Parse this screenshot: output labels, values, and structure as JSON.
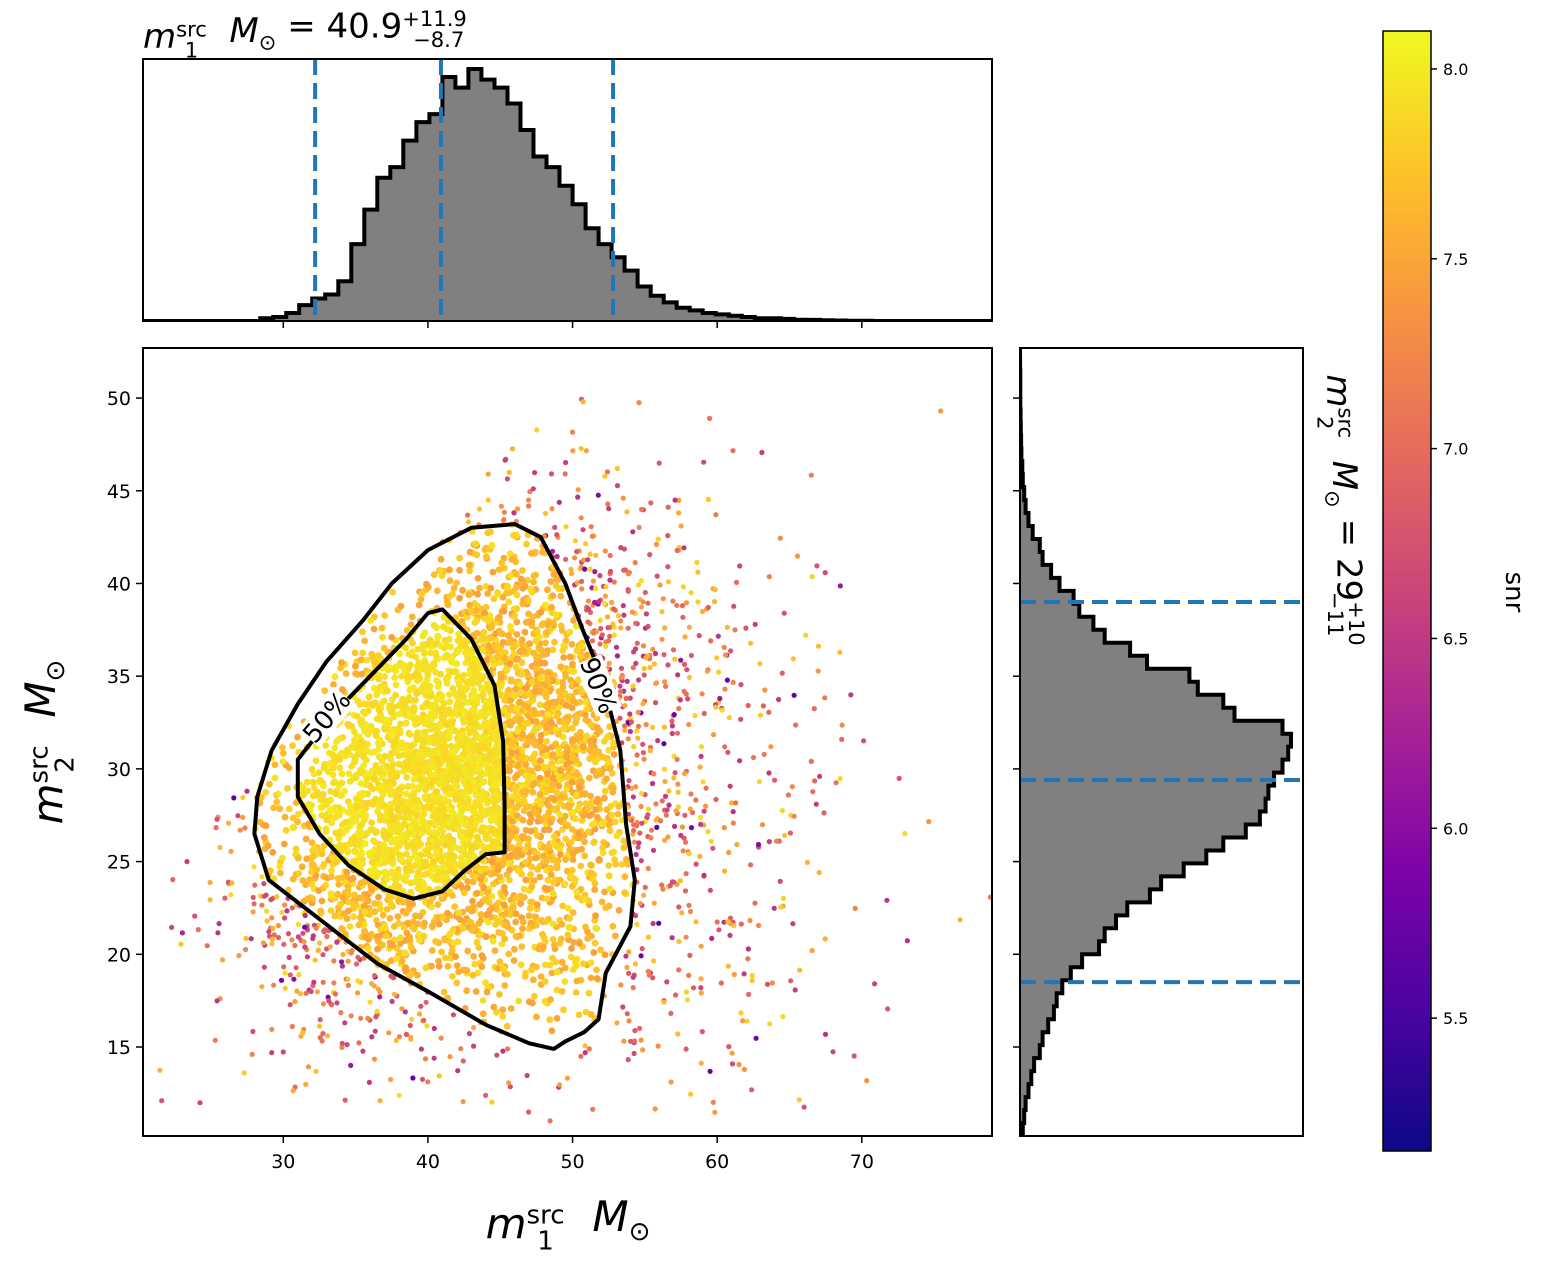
{
  "chart_data": [
    {
      "type": "scatter",
      "panel": "joint",
      "xlabel": {
        "base": "m",
        "sub": "1",
        "sup": "src",
        "unit": "M",
        "unit_sub": "⊙"
      },
      "ylabel": {
        "base": "m",
        "sub": "2",
        "sup": "src",
        "unit": "M",
        "unit_sub": "⊙"
      },
      "xlim": [
        20.3,
        79.0
      ],
      "ylim": [
        10.2,
        52.7
      ],
      "xticks": [
        30,
        40,
        50,
        60,
        70
      ],
      "yticks": [
        15,
        20,
        25,
        30,
        35,
        40,
        45,
        50
      ],
      "color_by": "snr",
      "contours": [
        {
          "label": "50%",
          "label_at": [
            33.0,
            32.8
          ],
          "points": [
            [
              41.0,
              38.6
            ],
            [
              43.0,
              37.0
            ],
            [
              44.6,
              34.5
            ],
            [
              45.2,
              31.5
            ],
            [
              45.3,
              28.0
            ],
            [
              45.3,
              25.5
            ],
            [
              44.0,
              25.4
            ],
            [
              42.5,
              24.5
            ],
            [
              41.0,
              23.4
            ],
            [
              39.0,
              23.0
            ],
            [
              37.0,
              23.5
            ],
            [
              34.5,
              24.8
            ],
            [
              32.5,
              26.5
            ],
            [
              31.0,
              28.5
            ],
            [
              31.0,
              30.5
            ],
            [
              33.5,
              33.0
            ],
            [
              36.0,
              35.0
            ],
            [
              38.5,
              37.0
            ],
            [
              40.0,
              38.4
            ],
            [
              41.0,
              38.6
            ]
          ]
        },
        {
          "label": "90%",
          "label_at": [
            51.8,
            34.5
          ],
          "points": [
            [
              46.0,
              43.2
            ],
            [
              47.8,
              42.5
            ],
            [
              49.5,
              40.0
            ],
            [
              50.7,
              37.5
            ],
            [
              52.0,
              35.0
            ],
            [
              53.3,
              31.0
            ],
            [
              53.7,
              27.0
            ],
            [
              54.3,
              24.0
            ],
            [
              54.0,
              21.5
            ],
            [
              52.3,
              19.0
            ],
            [
              51.8,
              16.5
            ],
            [
              50.8,
              15.8
            ],
            [
              49.5,
              15.3
            ],
            [
              48.7,
              14.9
            ],
            [
              47.0,
              15.2
            ],
            [
              44.0,
              16.2
            ],
            [
              40.0,
              18.0
            ],
            [
              36.5,
              19.5
            ],
            [
              34.0,
              21.0
            ],
            [
              31.5,
              22.5
            ],
            [
              29.0,
              24.0
            ],
            [
              28.0,
              26.5
            ],
            [
              28.2,
              28.5
            ],
            [
              29.2,
              31.0
            ],
            [
              31.0,
              33.5
            ],
            [
              33.0,
              35.8
            ],
            [
              35.5,
              38.0
            ],
            [
              37.5,
              40.0
            ],
            [
              40.0,
              41.8
            ],
            [
              43.0,
              43.0
            ],
            [
              46.0,
              43.2
            ]
          ]
        }
      ]
    },
    {
      "type": "histogram",
      "panel": "top",
      "title": {
        "base": "m",
        "sub": "1",
        "sup": "src",
        "unit": "M",
        "unit_sub": "⊙",
        "eq": " = ",
        "value": "40.9",
        "plus": "+11.9",
        "minus": "−8.7"
      },
      "bin_start": 20.3,
      "bin_width": 0.9,
      "counts": [
        0,
        0,
        0,
        0,
        0,
        0,
        0,
        0,
        0,
        0.01,
        0.015,
        0.03,
        0.06,
        0.085,
        0.1,
        0.15,
        0.29,
        0.42,
        0.54,
        0.58,
        0.68,
        0.75,
        0.78,
        0.92,
        0.88,
        0.95,
        0.91,
        0.88,
        0.82,
        0.72,
        0.62,
        0.58,
        0.51,
        0.44,
        0.35,
        0.29,
        0.24,
        0.19,
        0.13,
        0.095,
        0.07,
        0.05,
        0.04,
        0.03,
        0.025,
        0.02,
        0.015,
        0.01,
        0.01,
        0.008,
        0.005,
        0.004,
        0.003,
        0.002,
        0.001,
        0.001,
        0,
        0,
        0,
        0,
        0,
        0,
        0,
        0,
        0,
        0
      ],
      "quantile_lines": [
        32.2,
        40.9,
        52.8
      ],
      "xticks": [
        30,
        40,
        50,
        60,
        70
      ]
    },
    {
      "type": "histogram",
      "panel": "right",
      "orientation": "horizontal",
      "title": {
        "base": "m",
        "sub": "2",
        "sup": "src",
        "unit": "M",
        "unit_sub": "⊙",
        "eq": " = ",
        "value": "29",
        "plus": "+10",
        "minus": "−11"
      },
      "bin_start": 10.2,
      "bin_width": 0.7,
      "counts": [
        0.01,
        0.015,
        0.02,
        0.03,
        0.04,
        0.05,
        0.07,
        0.08,
        0.1,
        0.12,
        0.13,
        0.15,
        0.18,
        0.22,
        0.28,
        0.3,
        0.34,
        0.38,
        0.46,
        0.5,
        0.58,
        0.66,
        0.72,
        0.8,
        0.85,
        0.87,
        0.88,
        0.9,
        0.93,
        0.95,
        0.96,
        0.93,
        0.76,
        0.72,
        0.63,
        0.6,
        0.45,
        0.39,
        0.3,
        0.26,
        0.21,
        0.19,
        0.14,
        0.11,
        0.08,
        0.07,
        0.045,
        0.03,
        0.02,
        0.015,
        0.01,
        0.008,
        0.005,
        0.004,
        0.003,
        0.002,
        0.001,
        0.001,
        0.001,
        0.0005,
        0,
        0
      ],
      "quantile_lines": [
        18.5,
        29.4,
        39.0
      ],
      "yticks": [
        15,
        20,
        25,
        30,
        35,
        40,
        45,
        50
      ]
    }
  ],
  "colorbar": {
    "label": "snr",
    "colormap": "plasma",
    "range": [
      5.15,
      8.1
    ],
    "ticks": [
      "5.5",
      "6.0",
      "6.5",
      "7.0",
      "7.5",
      "8.0"
    ]
  },
  "colors": {
    "hist_fill": "#808080",
    "hist_edge": "#000000",
    "quantile_line": "#1f77b4",
    "contour": "#000000"
  }
}
